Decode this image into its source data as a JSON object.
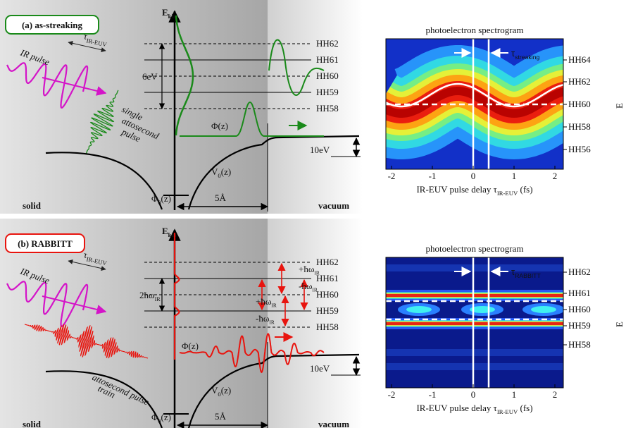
{
  "panels": [
    {
      "title": "(a) as-streaking",
      "ir_pulse": "IR pulse",
      "delay": {
        "main": "τ",
        "sub": "IR-EUV"
      },
      "energy_axis": {
        "main": "E",
        "sub": "kin"
      },
      "levels": [
        "HH62",
        "HH61",
        "HH60",
        "HH59",
        "HH58"
      ],
      "spacing": {
        "main": "6eV"
      },
      "pulse_label": [
        "single",
        "attosecond",
        "pulse"
      ],
      "wavefunction": "Φ(z)",
      "barrier": "10eV",
      "potential": {
        "main": "V",
        "sub": "0",
        "tail": "(z)"
      },
      "workfunction": {
        "main": "Φ",
        "sub": "0",
        "tail": "(z)"
      },
      "distance": "5Å",
      "solid": "solid",
      "vacuum": "vacuum",
      "spectrogram": {
        "title": "photoelectron spectrogram",
        "xticks": [
          -2,
          -1,
          0,
          1,
          2
        ],
        "yticks": [
          "HH64",
          "HH62",
          "HH60",
          "HH58",
          "HH56"
        ],
        "xlabel": {
          "main": "IR-EUV pulse delay τ",
          "sub": "IR-EUV",
          "tail": " (fs)"
        },
        "marker": {
          "main": "τ",
          "sub": "streaking"
        },
        "ylabel": "E"
      }
    },
    {
      "title": "(b) RABBITT",
      "ir_pulse": "IR pulse",
      "delay": {
        "main": "τ",
        "sub": "IR-EUV"
      },
      "energy_axis": {
        "main": "E",
        "sub": "kin"
      },
      "levels": [
        "HH62",
        "HH61",
        "HH60",
        "HH59",
        "HH58"
      ],
      "spacing": {
        "main": "2ħω",
        "sub": "IR"
      },
      "transitions": [
        {
          "main": "+ħω",
          "sub": "IR"
        },
        {
          "main": "-ħω",
          "sub": "IR"
        },
        {
          "main": "+ħω",
          "sub": "IR"
        },
        {
          "main": "-ħω",
          "sub": "IR"
        }
      ],
      "pulse_label": [
        "attosecond pulse",
        "train"
      ],
      "wavefunction": "Φ(z)",
      "barrier": "10eV",
      "potential": {
        "main": "V",
        "sub": "0",
        "tail": "(z)"
      },
      "workfunction": {
        "main": "Φ",
        "sub": "0",
        "tail": "(z)"
      },
      "distance": "5Å",
      "solid": "solid",
      "vacuum": "vacuum",
      "spectrogram": {
        "title": "photoelectron spectrogram",
        "xticks": [
          -2,
          -1,
          0,
          1,
          2
        ],
        "yticks": [
          "HH62",
          "HH61",
          "HH60",
          "HH59",
          "HH58"
        ],
        "xlabel": {
          "main": "IR-EUV pulse delay τ",
          "sub": "IR-EUV",
          "tail": " (fs)"
        },
        "marker": {
          "main": "τ",
          "sub": "RABBITT"
        },
        "ylabel": "E"
      }
    }
  ]
}
